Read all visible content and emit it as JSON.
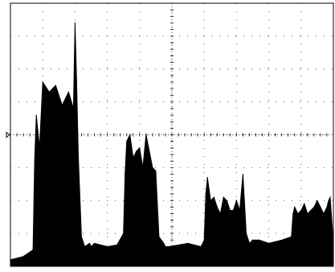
{
  "chart_data": {
    "type": "area",
    "title": "",
    "xlabel": "",
    "ylabel": "",
    "grid": true,
    "xlim": [
      0,
      10
    ],
    "ylim": [
      -4,
      4
    ],
    "x_divisions": 10,
    "y_divisions": 8,
    "x": [
      0,
      0.4,
      0.7,
      0.75,
      0.8,
      0.9,
      1.0,
      1.2,
      1.4,
      1.6,
      1.8,
      1.95,
      2.0,
      2.05,
      2.1,
      2.2,
      2.3,
      2.45,
      2.5,
      2.6,
      3.0,
      3.3,
      3.5,
      3.55,
      3.6,
      3.7,
      3.8,
      3.9,
      4.0,
      4.1,
      4.2,
      4.3,
      4.4,
      4.5,
      4.6,
      4.75,
      4.8,
      4.9,
      5.5,
      5.9,
      6.0,
      6.05,
      6.1,
      6.2,
      6.3,
      6.4,
      6.5,
      6.6,
      6.7,
      6.8,
      6.9,
      7.0,
      7.1,
      7.2,
      7.3,
      7.4,
      7.5,
      7.7,
      8.0,
      8.4,
      8.7,
      8.75,
      8.8,
      8.9,
      9.0,
      9.1,
      9.2,
      9.3,
      9.4,
      9.5,
      9.6,
      9.7,
      9.8,
      9.85,
      9.9,
      10.0
    ],
    "series": [
      {
        "color": "#000000",
        "values": [
          -3.8,
          -3.7,
          -3.5,
          -0.8,
          0.6,
          -0.4,
          1.6,
          1.3,
          1.5,
          0.9,
          1.3,
          0.8,
          3.4,
          1.6,
          -0.6,
          -3.1,
          -3.4,
          -3.3,
          -3.4,
          -3.3,
          -3.4,
          -3.35,
          -3.0,
          -1.2,
          -0.2,
          0.0,
          -0.7,
          -0.5,
          -0.4,
          -1.0,
          0.0,
          -0.5,
          -1.0,
          -1.1,
          -3.1,
          -3.3,
          -3.4,
          -3.4,
          -3.3,
          -3.4,
          -3.2,
          -1.8,
          -1.3,
          -2.0,
          -1.9,
          -2.2,
          -2.4,
          -1.9,
          -2.0,
          -2.3,
          -2.3,
          -2.0,
          -2.3,
          -1.2,
          -3.0,
          -3.3,
          -3.2,
          -3.2,
          -3.3,
          -3.2,
          -3.1,
          -2.4,
          -2.2,
          -2.4,
          -2.3,
          -2.1,
          -2.4,
          -2.3,
          -2.2,
          -2.0,
          -2.2,
          -2.4,
          -2.2,
          -2.0,
          -1.9,
          -3.3
        ]
      }
    ]
  }
}
